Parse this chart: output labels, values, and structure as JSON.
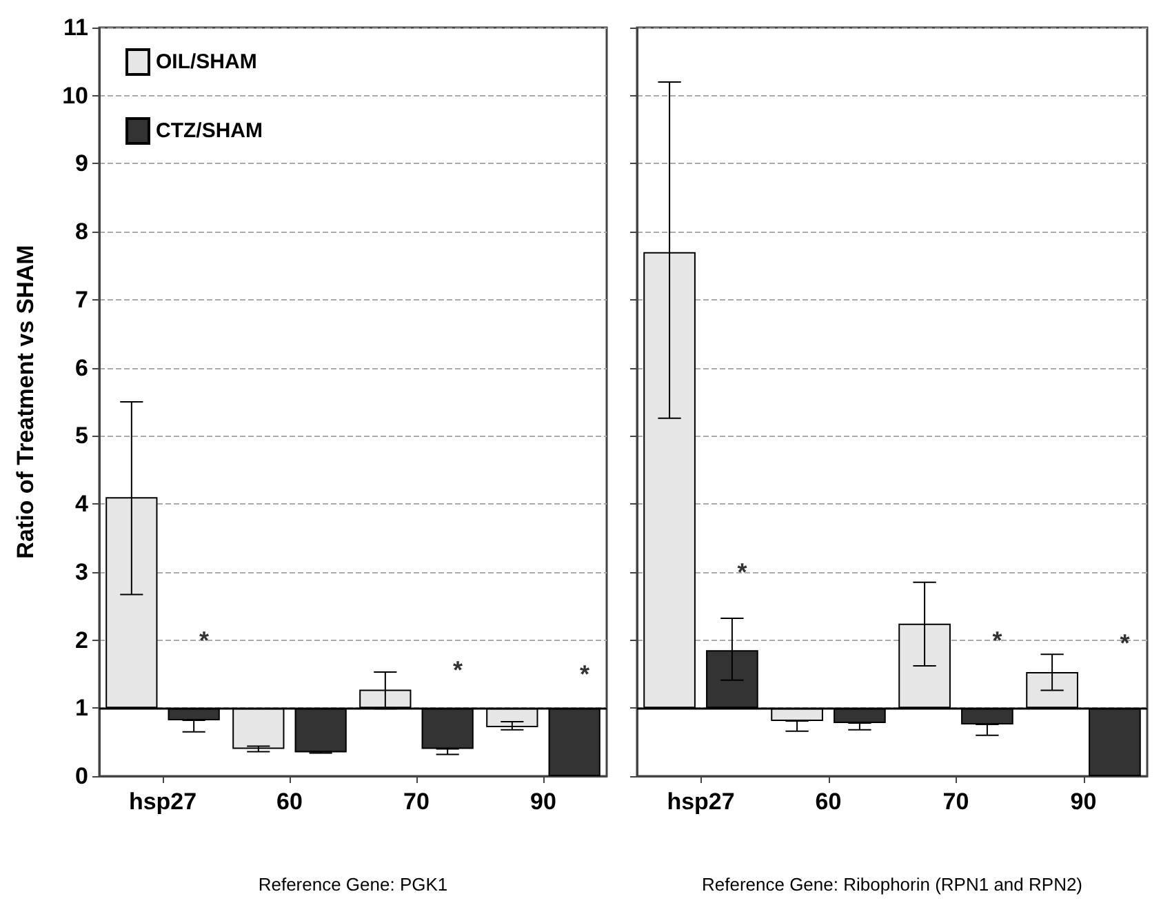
{
  "chart_data": [
    {
      "type": "bar",
      "categories": [
        "hsp27",
        "60",
        "70",
        "90"
      ],
      "xlabel": "Reference Gene: PGK1",
      "ylabel": "Ratio of Treatment vs SHAM",
      "series": [
        {
          "name": "OIL/SHAM",
          "color": "#e6e6e6",
          "base": [
            1,
            1,
            1,
            1
          ],
          "values": [
            3.1,
            -0.6,
            0.27,
            -0.28
          ],
          "errors": [
            [
              2.67,
              5.5
            ],
            [
              0.36,
              0.44
            ],
            [
              0.99,
              1.53
            ],
            [
              0.68,
              0.8
            ]
          ]
        },
        {
          "name": "CTZ/SHAM",
          "color": "#333333",
          "base": [
            1,
            1,
            1,
            1
          ],
          "values": [
            -0.18,
            -0.65,
            -0.6,
            -1
          ],
          "errors": [
            [
              0.65,
              0.82
            ],
            [
              0.34,
              0.36
            ],
            [
              0.32,
              0.4
            ],
            null
          ]
        }
      ],
      "ylim": [
        0,
        11
      ],
      "yticks": [
        0,
        1,
        2,
        3,
        4,
        5,
        6,
        7,
        8,
        9,
        10,
        11
      ],
      "grid": "y",
      "legend": "top left",
      "ref_lines": [
        {
          "axis": "y",
          "value": 1
        }
      ],
      "annotations": [
        "*",
        "*",
        "*"
      ]
    },
    {
      "type": "bar",
      "categories": [
        "hsp27",
        "60",
        "70",
        "90"
      ],
      "xlabel": "Reference Gene: Ribophorin (RPN1 and RPN2)",
      "series": [
        {
          "color": "#e6e6e6",
          "base": [
            1,
            1,
            1,
            1
          ],
          "values": [
            6.7,
            -0.19,
            1.24,
            0.53
          ],
          "errors": [
            [
              5.26,
              10.2
            ],
            [
              0.66,
              0.81
            ],
            [
              1.62,
              2.85
            ],
            [
              1.26,
              1.79
            ]
          ]
        },
        {
          "color": "#333333",
          "base": [
            1,
            1,
            1,
            1
          ],
          "values": [
            0.85,
            -0.22,
            -0.24,
            -1
          ],
          "errors": [
            [
              1.41,
              2.32
            ],
            [
              0.68,
              0.78
            ],
            [
              0.6,
              0.76
            ],
            null
          ]
        }
      ],
      "ylim": [
        0,
        11
      ],
      "yticks": [
        0,
        1,
        2,
        3,
        4,
        5,
        6,
        7,
        8,
        9,
        10,
        11
      ],
      "grid": "y",
      "tick_labels": "x",
      "ref_lines": [
        {
          "axis": "y",
          "value": 1
        }
      ],
      "annotations": [
        "*",
        "*",
        "*"
      ]
    }
  ]
}
